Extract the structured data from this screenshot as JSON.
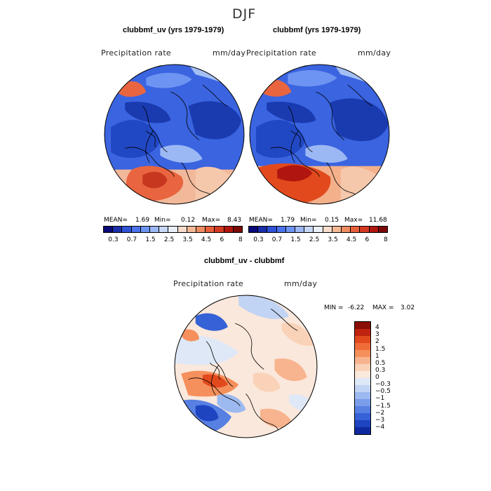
{
  "figure": {
    "season": "DJF"
  },
  "panels": [
    {
      "title": "clubbmf_uv (yrs 1979-1979)",
      "variable": "Precipitation rate",
      "units": "mm/day",
      "mean_label": "MEAN=",
      "mean": "1.69",
      "min_label": "Min=",
      "min": "0.12",
      "max_label": "Max=",
      "max": "8.43"
    },
    {
      "title": "clubbmf (yrs 1979-1979)",
      "variable": "Precipitation rate",
      "units": "mm/day",
      "mean_label": "MEAN=",
      "mean": "1.79",
      "min_label": "Min=",
      "min": "0.15",
      "max_label": "Max=",
      "max": "11.68"
    },
    {
      "title": "clubbmf_uv - clubbmf",
      "variable": "Precipitation rate",
      "units": "mm/day",
      "min_label": "MIN =",
      "min": "-6.22",
      "max_label": "MAX =",
      "max": "3.02"
    }
  ],
  "colorbar_abs": {
    "ticks": [
      "0.3",
      "0.7",
      "1.5",
      "2.5",
      "3.5",
      "4.5",
      "6",
      "8"
    ],
    "colors": [
      "#0a0a78",
      "#1a2fa8",
      "#2f52d6",
      "#4a72ea",
      "#6d94f2",
      "#9cb8f4",
      "#c7d8f5",
      "#e9eef7",
      "#f7dccb",
      "#f3b896",
      "#ee8c63",
      "#e6603c",
      "#d43a22",
      "#b0160f",
      "#7a0a08"
    ]
  },
  "colorbar_diff": {
    "ticks": [
      "4",
      "3",
      "2",
      "1.5",
      "1",
      "0.5",
      "0.3",
      "0",
      "−0.3",
      "−0.5",
      "−1",
      "−1.5",
      "−2",
      "−3",
      "−4"
    ],
    "colors": [
      "#8a0d08",
      "#c0230f",
      "#e24a1e",
      "#ef6c38",
      "#f5905c",
      "#f8b48e",
      "#fad2b8",
      "#fbe8dc",
      "#dfe8f6",
      "#c2d4f3",
      "#9dbaf0",
      "#7a9deb",
      "#5780e2",
      "#3562d6",
      "#1e44c0",
      "#0f2aa0"
    ]
  }
}
